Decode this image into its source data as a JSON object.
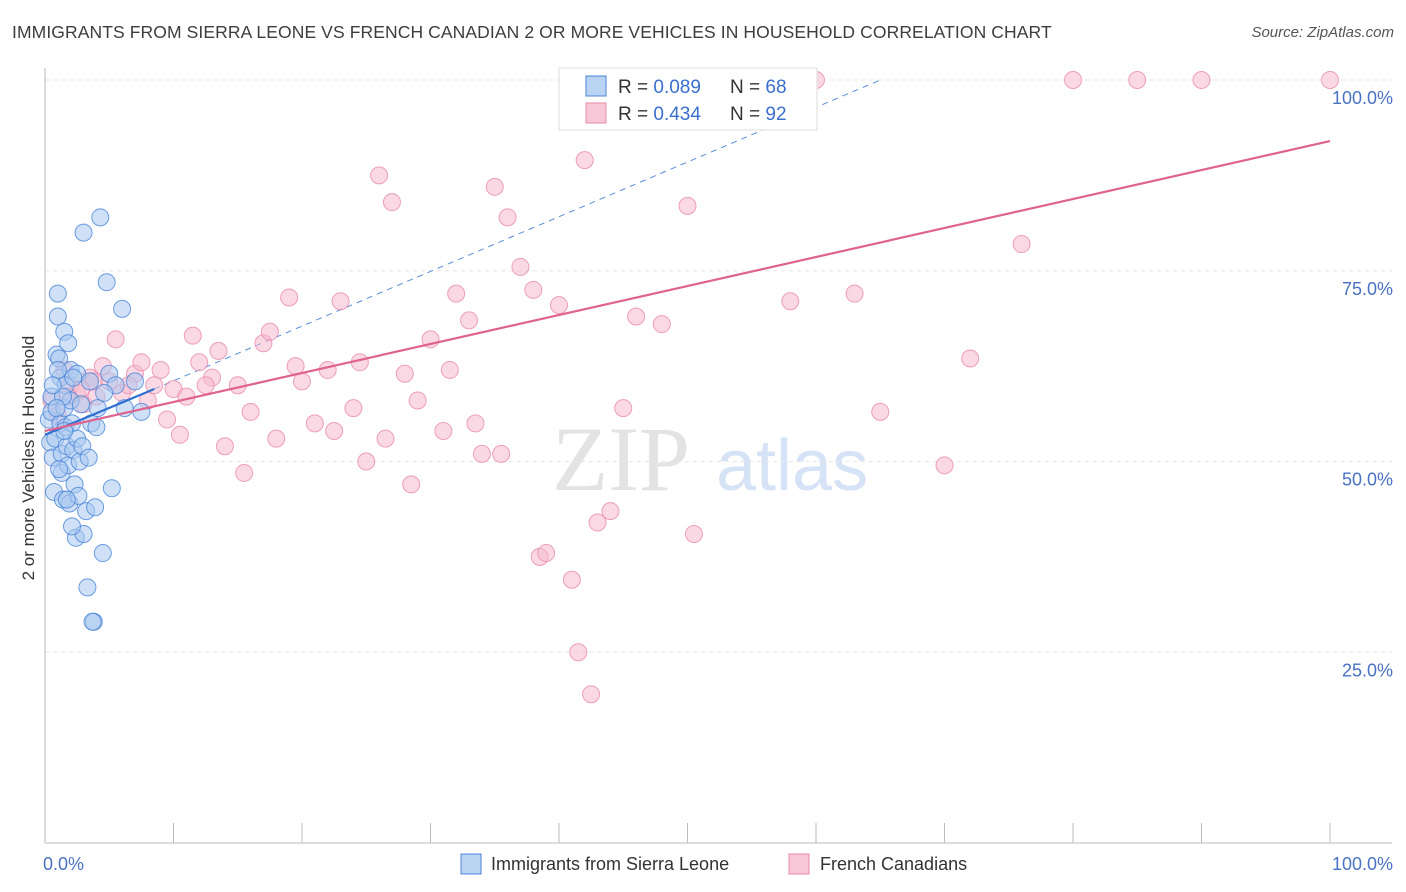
{
  "title": "IMMIGRANTS FROM SIERRA LEONE VS FRENCH CANADIAN 2 OR MORE VEHICLES IN HOUSEHOLD CORRELATION CHART",
  "source": "Source: ZipAtlas.com",
  "watermark": {
    "zip": "ZIP",
    "atlas": "atlas"
  },
  "colors": {
    "blue_fill": "#a9c8f0",
    "blue_stroke": "#4a86d8",
    "blue_line": "#2f6fd0",
    "pink_fill": "#f6b9cd",
    "pink_stroke": "#e98aab",
    "pink_line": "#e0628e",
    "value_text": "#3a6fcf",
    "label_text": "#333333"
  },
  "chart_data": {
    "type": "scatter",
    "xlabel": "",
    "ylabel": "2 or more Vehicles in Household",
    "xlim": [
      0,
      100
    ],
    "ylim": [
      0,
      100
    ],
    "x_tick_labels": [
      {
        "value": 0,
        "label": "0.0%"
      },
      {
        "value": 100,
        "label": "100.0%"
      }
    ],
    "y_tick_labels": [
      {
        "value": 25,
        "label": "25.0%"
      },
      {
        "value": 50,
        "label": "50.0%"
      },
      {
        "value": 75,
        "label": "75.0%"
      },
      {
        "value": 100,
        "label": "100.0%"
      }
    ],
    "legend_stats": [
      {
        "r_label": "R = ",
        "r_value": "0.089",
        "n_label": "N = ",
        "n_value": "68"
      },
      {
        "r_label": "R = ",
        "r_value": "0.434",
        "n_label": "N = ",
        "n_value": "92"
      }
    ],
    "series": [
      {
        "name": "Immigrants from Sierra Leone",
        "color": "#a9c8f0",
        "trend": {
          "x": [
            0,
            8.5
          ],
          "y": [
            53.5,
            59.5
          ]
        },
        "trend_extension": {
          "x": [
            8.5,
            65
          ],
          "y": [
            59.5,
            100
          ]
        },
        "points": [
          [
            0.3,
            55.5
          ],
          [
            0.4,
            52.5
          ],
          [
            0.5,
            56.5
          ],
          [
            0.5,
            58.5
          ],
          [
            0.6,
            50.5
          ],
          [
            0.7,
            46.0
          ],
          [
            0.8,
            53.0
          ],
          [
            0.9,
            64.0
          ],
          [
            1.0,
            72.0
          ],
          [
            1.0,
            69.0
          ],
          [
            1.1,
            63.5
          ],
          [
            1.2,
            61.0
          ],
          [
            1.2,
            55.0
          ],
          [
            1.3,
            51.0
          ],
          [
            1.3,
            48.5
          ],
          [
            1.4,
            45.0
          ],
          [
            1.5,
            67.0
          ],
          [
            1.5,
            57.0
          ],
          [
            1.6,
            60.0
          ],
          [
            1.6,
            54.5
          ],
          [
            1.7,
            52.0
          ],
          [
            1.8,
            65.5
          ],
          [
            1.8,
            49.5
          ],
          [
            1.9,
            44.5
          ],
          [
            2.0,
            62.0
          ],
          [
            2.0,
            58.0
          ],
          [
            2.1,
            55.0
          ],
          [
            2.2,
            51.5
          ],
          [
            2.3,
            47.0
          ],
          [
            2.4,
            40.0
          ],
          [
            2.5,
            61.5
          ],
          [
            2.5,
            53.0
          ],
          [
            2.6,
            45.5
          ],
          [
            2.7,
            50.0
          ],
          [
            2.8,
            57.5
          ],
          [
            3.0,
            40.5
          ],
          [
            3.0,
            80.0
          ],
          [
            3.2,
            43.5
          ],
          [
            3.3,
            33.5
          ],
          [
            3.5,
            60.5
          ],
          [
            3.6,
            55.0
          ],
          [
            3.8,
            29.0
          ],
          [
            4.0,
            54.5
          ],
          [
            4.1,
            57.0
          ],
          [
            4.3,
            82.0
          ],
          [
            4.5,
            38.0
          ],
          [
            4.8,
            73.5
          ],
          [
            5.0,
            61.5
          ],
          [
            5.2,
            46.5
          ],
          [
            5.5,
            60.0
          ],
          [
            6.0,
            70.0
          ],
          [
            6.2,
            57.0
          ],
          [
            7.0,
            60.5
          ],
          [
            7.5,
            56.5
          ],
          [
            1.0,
            62.0
          ],
          [
            1.4,
            58.5
          ],
          [
            2.2,
            61.0
          ],
          [
            1.7,
            45.0
          ],
          [
            2.9,
            52.0
          ],
          [
            0.9,
            57.0
          ],
          [
            1.1,
            49.0
          ],
          [
            3.4,
            50.5
          ],
          [
            3.9,
            44.0
          ],
          [
            2.1,
            41.5
          ],
          [
            0.6,
            60.0
          ],
          [
            1.5,
            54.0
          ],
          [
            4.6,
            59.0
          ],
          [
            3.7,
            29.0
          ]
        ]
      },
      {
        "name": "French Canadians",
        "color": "#f6b9cd",
        "trend": {
          "x": [
            0,
            100
          ],
          "y": [
            54.0,
            92.0
          ]
        },
        "points": [
          [
            0.5,
            58.0
          ],
          [
            1.0,
            56.0
          ],
          [
            1.5,
            62.0
          ],
          [
            2.0,
            60.0
          ],
          [
            2.5,
            59.0
          ],
          [
            3.0,
            57.5
          ],
          [
            3.5,
            61.0
          ],
          [
            4.0,
            58.5
          ],
          [
            5.0,
            60.5
          ],
          [
            6.0,
            59.0
          ],
          [
            7.0,
            61.5
          ],
          [
            8.0,
            58.0
          ],
          [
            9.0,
            62.0
          ],
          [
            10.0,
            59.5
          ],
          [
            11.0,
            58.5
          ],
          [
            12.0,
            63.0
          ],
          [
            13.0,
            61.0
          ],
          [
            14.0,
            52.0
          ],
          [
            15.0,
            60.0
          ],
          [
            16.0,
            56.5
          ],
          [
            17.0,
            65.5
          ],
          [
            18.0,
            53.0
          ],
          [
            19.0,
            71.5
          ],
          [
            20.0,
            60.5
          ],
          [
            21.0,
            55.0
          ],
          [
            22.0,
            62.0
          ],
          [
            23.0,
            71.0
          ],
          [
            24.0,
            57.0
          ],
          [
            25.0,
            50.0
          ],
          [
            26.0,
            87.5
          ],
          [
            27.0,
            84.0
          ],
          [
            28.0,
            61.5
          ],
          [
            29.0,
            58.0
          ],
          [
            30.0,
            66.0
          ],
          [
            31.0,
            54.0
          ],
          [
            32.0,
            72.0
          ],
          [
            33.0,
            68.5
          ],
          [
            34.0,
            51.0
          ],
          [
            35.0,
            86.0
          ],
          [
            36.0,
            82.0
          ],
          [
            37.0,
            75.5
          ],
          [
            38.0,
            72.5
          ],
          [
            40.0,
            70.5
          ],
          [
            41.0,
            34.5
          ],
          [
            42.0,
            89.5
          ],
          [
            43.0,
            42.0
          ],
          [
            44.0,
            43.5
          ],
          [
            45.0,
            57.0
          ],
          [
            46.0,
            69.0
          ],
          [
            48.0,
            68.0
          ],
          [
            50.0,
            83.5
          ],
          [
            52.0,
            100.0
          ],
          [
            55.0,
            100.0
          ],
          [
            58.0,
            71.0
          ],
          [
            60.0,
            100.0
          ],
          [
            63.0,
            72.0
          ],
          [
            65.0,
            56.5
          ],
          [
            70.0,
            49.5
          ],
          [
            72.0,
            63.5
          ],
          [
            76.0,
            78.5
          ],
          [
            80.0,
            100.0
          ],
          [
            85.0,
            100.0
          ],
          [
            90.0,
            100.0
          ],
          [
            100.0,
            100.0
          ],
          [
            38.5,
            37.5
          ],
          [
            39.0,
            38.0
          ],
          [
            41.5,
            25.0
          ],
          [
            42.5,
            19.5
          ],
          [
            50.5,
            40.5
          ],
          [
            17.5,
            67.0
          ],
          [
            12.5,
            60.0
          ],
          [
            9.5,
            55.5
          ],
          [
            15.5,
            48.5
          ],
          [
            19.5,
            62.5
          ],
          [
            22.5,
            54.0
          ],
          [
            24.5,
            63.0
          ],
          [
            26.5,
            53.0
          ],
          [
            28.5,
            47.0
          ],
          [
            31.5,
            62.0
          ],
          [
            33.5,
            55.0
          ],
          [
            35.5,
            51.0
          ],
          [
            13.5,
            64.5
          ],
          [
            10.5,
            53.5
          ],
          [
            7.5,
            63.0
          ],
          [
            6.5,
            60.0
          ],
          [
            4.5,
            62.5
          ],
          [
            3.8,
            60.5
          ],
          [
            2.8,
            59.5
          ],
          [
            1.8,
            58.5
          ],
          [
            5.5,
            66.0
          ],
          [
            8.5,
            60.0
          ],
          [
            11.5,
            66.5
          ]
        ]
      }
    ]
  },
  "legend": {
    "series": [
      {
        "name": "Immigrants from Sierra Leone"
      },
      {
        "name": "French Canadians"
      }
    ]
  }
}
